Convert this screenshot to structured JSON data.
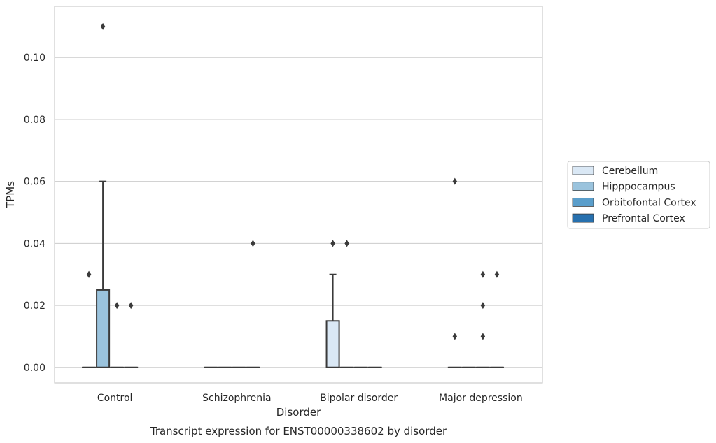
{
  "chart_data": {
    "type": "box",
    "title": "",
    "caption": "Transcript expression for ENST00000338602 by disorder",
    "xlabel": "Disorder",
    "ylabel": "TPMs",
    "ylim": [
      -0.005,
      0.1165
    ],
    "yticks": [
      0.0,
      0.02,
      0.04,
      0.06,
      0.08,
      0.1
    ],
    "ytick_labels": [
      "0.00",
      "0.02",
      "0.04",
      "0.06",
      "0.08",
      "0.10"
    ],
    "grid": true,
    "legend_position": "right",
    "categories": [
      "Control",
      "Schizophrenia",
      "Bipolar disorder",
      "Major depression"
    ],
    "series": [
      {
        "name": "Cerebellum",
        "color": "#dae8f5",
        "boxes": [
          {
            "q1": 0.0,
            "median": 0.0,
            "q3": 0.0,
            "whisker_low": 0.0,
            "whisker_high": 0.0,
            "outliers": [
              0.03,
              0.03
            ]
          },
          {
            "q1": 0.0,
            "median": 0.0,
            "q3": 0.0,
            "whisker_low": 0.0,
            "whisker_high": 0.0,
            "outliers": []
          },
          {
            "q1": 0.0,
            "median": 0.0,
            "q3": 0.015,
            "whisker_low": 0.0,
            "whisker_high": 0.03,
            "outliers": [
              0.04
            ]
          },
          {
            "q1": 0.0,
            "median": 0.0,
            "q3": 0.0,
            "whisker_low": 0.0,
            "whisker_high": 0.0,
            "outliers": [
              0.06,
              0.01
            ]
          }
        ]
      },
      {
        "name": "Hipppocampus",
        "color": "#9ac3dd",
        "boxes": [
          {
            "q1": 0.0,
            "median": 0.0,
            "q3": 0.025,
            "whisker_low": 0.0,
            "whisker_high": 0.06,
            "outliers": [
              0.11
            ]
          },
          {
            "q1": 0.0,
            "median": 0.0,
            "q3": 0.0,
            "whisker_low": 0.0,
            "whisker_high": 0.0,
            "outliers": []
          },
          {
            "q1": 0.0,
            "median": 0.0,
            "q3": 0.0,
            "whisker_low": 0.0,
            "whisker_high": 0.0,
            "outliers": [
              0.04
            ]
          },
          {
            "q1": 0.0,
            "median": 0.0,
            "q3": 0.0,
            "whisker_low": 0.0,
            "whisker_high": 0.0,
            "outliers": []
          }
        ]
      },
      {
        "name": "Orbitofontal Cortex",
        "color": "#5a9ecb",
        "boxes": [
          {
            "q1": 0.0,
            "median": 0.0,
            "q3": 0.0,
            "whisker_low": 0.0,
            "whisker_high": 0.0,
            "outliers": [
              0.02
            ]
          },
          {
            "q1": 0.0,
            "median": 0.0,
            "q3": 0.0,
            "whisker_low": 0.0,
            "whisker_high": 0.0,
            "outliers": []
          },
          {
            "q1": 0.0,
            "median": 0.0,
            "q3": 0.0,
            "whisker_low": 0.0,
            "whisker_high": 0.0,
            "outliers": []
          },
          {
            "q1": 0.0,
            "median": 0.0,
            "q3": 0.0,
            "whisker_low": 0.0,
            "whisker_high": 0.0,
            "outliers": [
              0.03,
              0.02,
              0.01
            ]
          }
        ]
      },
      {
        "name": "Prefrontal Cortex",
        "color": "#2770ae",
        "boxes": [
          {
            "q1": 0.0,
            "median": 0.0,
            "q3": 0.0,
            "whisker_low": 0.0,
            "whisker_high": 0.0,
            "outliers": [
              0.02
            ]
          },
          {
            "q1": 0.0,
            "median": 0.0,
            "q3": 0.0,
            "whisker_low": 0.0,
            "whisker_high": 0.0,
            "outliers": [
              0.04
            ]
          },
          {
            "q1": 0.0,
            "median": 0.0,
            "q3": 0.0,
            "whisker_low": 0.0,
            "whisker_high": 0.0,
            "outliers": []
          },
          {
            "q1": 0.0,
            "median": 0.0,
            "q3": 0.0,
            "whisker_low": 0.0,
            "whisker_high": 0.0,
            "outliers": [
              0.03
            ]
          }
        ]
      }
    ]
  }
}
